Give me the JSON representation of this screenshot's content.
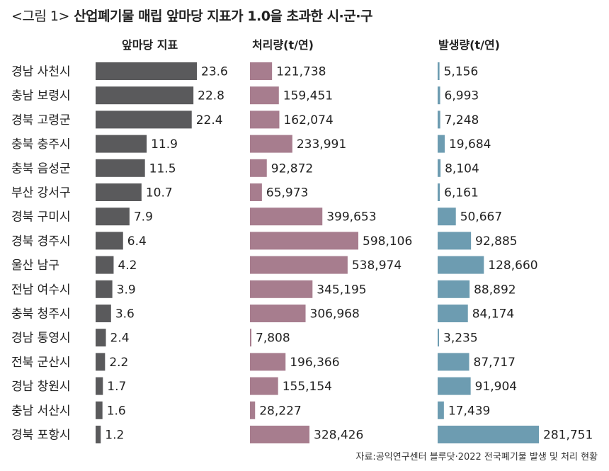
{
  "title": {
    "prefix": "<그림 1>",
    "text": "산업폐기물 매립 앞마당 지표가 1.0을 초과한 시·군·구"
  },
  "source": "자료:공익연구센터 블루닷·2022 전국폐기물 발생 및 처리 현황",
  "colors": {
    "index": "#5a5a5c",
    "processed": "#a77d8e",
    "generated": "#6d9cb1"
  },
  "chart_data": {
    "type": "bar",
    "orientation": "horizontal",
    "title": "<그림 1> 산업폐기물 매립 앞마당 지표가 1.0을 초과한 시·군·구",
    "categories": [
      "경남 사천시",
      "충남 보령시",
      "경북 고령군",
      "충북 충주시",
      "충북 음성군",
      "부산 강서구",
      "경북 구미시",
      "경북 경주시",
      "울산 남구",
      "전남 여수시",
      "충북 청주시",
      "경남 통영시",
      "전북 군산시",
      "경남 창원시",
      "충남 서산시",
      "경북 포항시"
    ],
    "series": [
      {
        "name": "앞마당 지표",
        "values": [
          23.6,
          22.8,
          22.4,
          11.9,
          11.5,
          10.7,
          7.9,
          6.4,
          4.2,
          3.9,
          3.6,
          2.4,
          2.2,
          1.7,
          1.6,
          1.2
        ],
        "labels": [
          "23.6",
          "22.8",
          "22.4",
          "11.9",
          "11.5",
          "10.7",
          "7.9",
          "6.4",
          "4.2",
          "3.9",
          "3.6",
          "2.4",
          "2.2",
          "1.7",
          "1.6",
          "1.2"
        ]
      },
      {
        "name": "처리량(t/연)",
        "values": [
          121738,
          159451,
          162074,
          233991,
          92872,
          65973,
          399653,
          598106,
          538974,
          345195,
          306968,
          7808,
          196366,
          155154,
          28227,
          328426
        ],
        "labels": [
          "121,738",
          "159,451",
          "162,074",
          "233,991",
          "92,872",
          "65,973",
          "399,653",
          "598,106",
          "538,974",
          "345,195",
          "306,968",
          "7,808",
          "196,366",
          "155,154",
          "28,227",
          "328,426"
        ]
      },
      {
        "name": "발생량(t/연)",
        "values": [
          5156,
          6993,
          7248,
          19684,
          8104,
          6161,
          50667,
          92885,
          128660,
          88892,
          84174,
          3235,
          87717,
          91904,
          17439,
          281751
        ],
        "labels": [
          "5,156",
          "6,993",
          "7,248",
          "19,684",
          "8,104",
          "6,161",
          "50,667",
          "92,885",
          "128,660",
          "88,892",
          "84,174",
          "3,235",
          "87,717",
          "91,904",
          "17,439",
          "281,751"
        ]
      }
    ],
    "grid": false,
    "legend": "none"
  }
}
